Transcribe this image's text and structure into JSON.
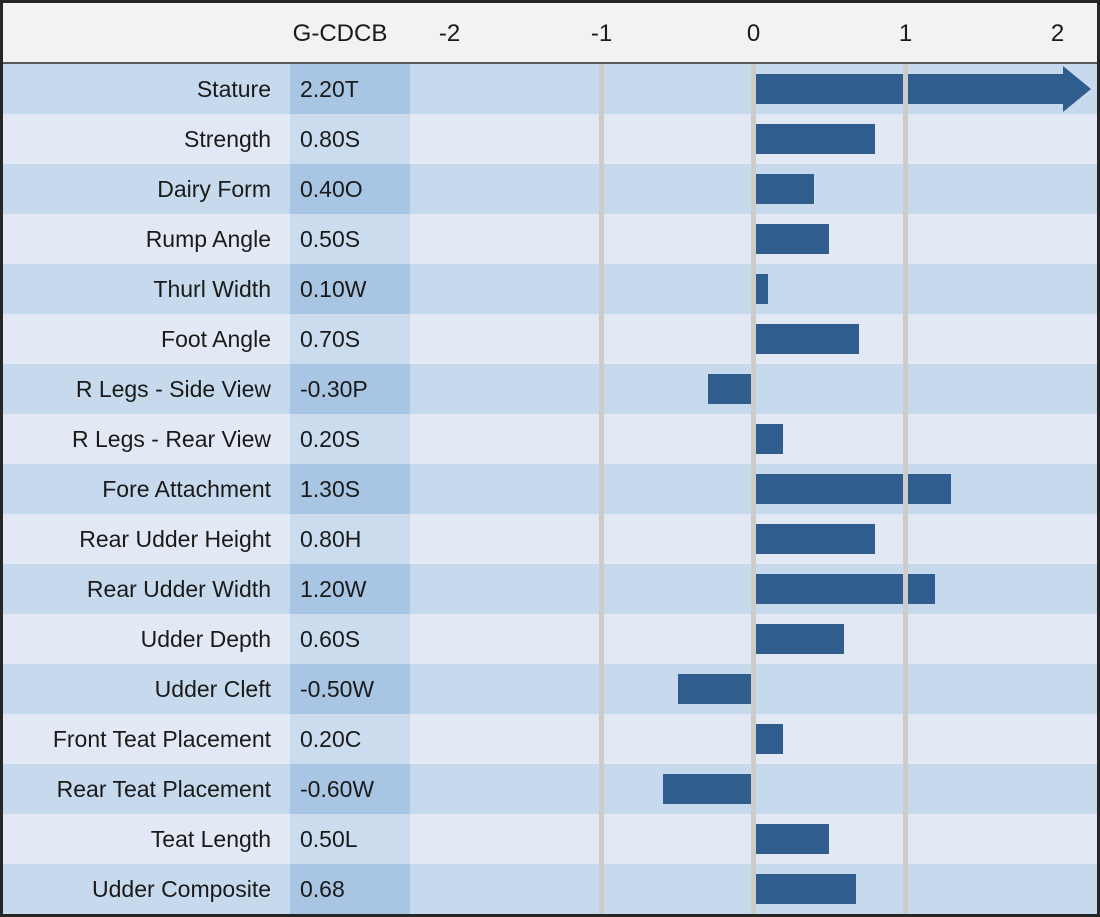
{
  "chart_data": {
    "type": "bar",
    "orientation": "horizontal",
    "value_column_header": "G-CDCB",
    "x_ticks": [
      "-2",
      "-1",
      "0",
      "1",
      "2"
    ],
    "x_tick_values": [
      -2,
      -1,
      0,
      1,
      2
    ],
    "xlim": [
      -2.26,
      2.26
    ],
    "gridlines_at": [
      -1,
      0,
      1
    ],
    "legend_position": "none",
    "rows": [
      {
        "trait": "Stature",
        "value_label": "2.20T",
        "value": 2.2,
        "overflow_arrow": true
      },
      {
        "trait": "Strength",
        "value_label": "0.80S",
        "value": 0.8,
        "overflow_arrow": false
      },
      {
        "trait": "Dairy Form",
        "value_label": "0.40O",
        "value": 0.4,
        "overflow_arrow": false
      },
      {
        "trait": "Rump Angle",
        "value_label": "0.50S",
        "value": 0.5,
        "overflow_arrow": false
      },
      {
        "trait": "Thurl Width",
        "value_label": "0.10W",
        "value": 0.1,
        "overflow_arrow": false
      },
      {
        "trait": "Foot Angle",
        "value_label": "0.70S",
        "value": 0.7,
        "overflow_arrow": false
      },
      {
        "trait": "R Legs - Side View",
        "value_label": "-0.30P",
        "value": -0.3,
        "overflow_arrow": false
      },
      {
        "trait": "R Legs - Rear View",
        "value_label": "0.20S",
        "value": 0.2,
        "overflow_arrow": false
      },
      {
        "trait": "Fore Attachment",
        "value_label": "1.30S",
        "value": 1.3,
        "overflow_arrow": false
      },
      {
        "trait": "Rear Udder Height",
        "value_label": "0.80H",
        "value": 0.8,
        "overflow_arrow": false
      },
      {
        "trait": "Rear Udder Width",
        "value_label": "1.20W",
        "value": 1.2,
        "overflow_arrow": false
      },
      {
        "trait": "Udder Depth",
        "value_label": "0.60S",
        "value": 0.6,
        "overflow_arrow": false
      },
      {
        "trait": "Udder Cleft",
        "value_label": "-0.50W",
        "value": -0.5,
        "overflow_arrow": false
      },
      {
        "trait": "Front Teat Placement",
        "value_label": "0.20C",
        "value": 0.2,
        "overflow_arrow": false
      },
      {
        "trait": "Rear Teat Placement",
        "value_label": "-0.60W",
        "value": -0.6,
        "overflow_arrow": false
      },
      {
        "trait": "Teat Length",
        "value_label": "0.50L",
        "value": 0.5,
        "overflow_arrow": false
      },
      {
        "trait": "Udder Composite",
        "value_label": "0.68",
        "value": 0.68,
        "overflow_arrow": false
      }
    ]
  },
  "colors": {
    "bar": "#2f5d8e",
    "row_dark": "#c6d9ed",
    "row_dark_value": "#a8c6e3",
    "row_light": "#e2e9f4",
    "row_light_value": "#cadcee",
    "gridline": "#cdccc9",
    "header_bg": "#f2f2f2",
    "divider": "#595959",
    "border": "#262626"
  }
}
